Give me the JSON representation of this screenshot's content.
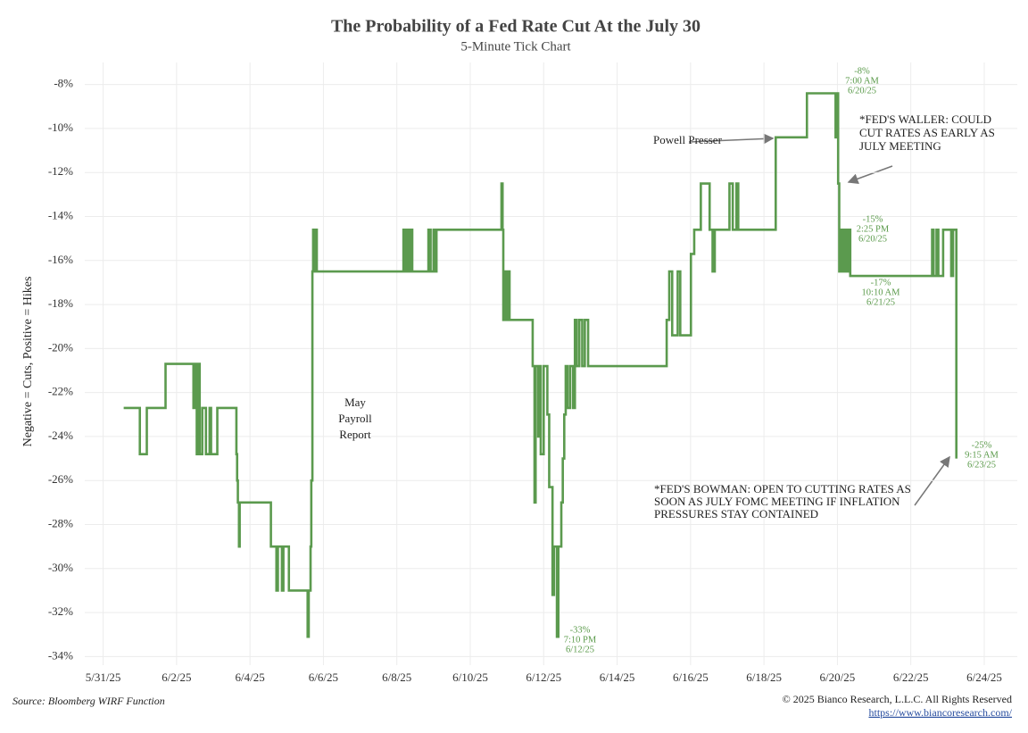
{
  "chart_data": {
    "type": "line",
    "title": "The Probability of a Fed Rate Cut At the July 30",
    "subtitle": "5-Minute Tick Chart",
    "y_label": "Negative = Cuts, Positive = Hikes",
    "source": "Source: Bloomberg WIRF Function",
    "copyright": "© 2025 Bianco Research, L.L.C. All Rights Reserved",
    "url": "https://www.biancoresearch.com/",
    "color": "#5b9a4e",
    "step": "post",
    "grid": true,
    "xlim": [
      -0.5,
      24.9
    ],
    "ylim": [
      -35,
      -7
    ],
    "xticks": [
      {
        "value": 0,
        "label": "5/31/25"
      },
      {
        "value": 2,
        "label": "6/2/25"
      },
      {
        "value": 4,
        "label": "6/4/25"
      },
      {
        "value": 6,
        "label": "6/6/25"
      },
      {
        "value": 8,
        "label": "6/8/25"
      },
      {
        "value": 10,
        "label": "6/10/25"
      },
      {
        "value": 12,
        "label": "6/12/25"
      },
      {
        "value": 14,
        "label": "6/14/25"
      },
      {
        "value": 16,
        "label": "6/16/25"
      },
      {
        "value": 18,
        "label": "6/18/25"
      },
      {
        "value": 20,
        "label": "6/20/25"
      },
      {
        "value": 22,
        "label": "6/22/25"
      },
      {
        "value": 24,
        "label": "6/24/25"
      }
    ],
    "yticks": [
      {
        "value": -34,
        "label": "-34%"
      },
      {
        "value": -32,
        "label": "-32%"
      },
      {
        "value": -30,
        "label": "-30%"
      },
      {
        "value": -28,
        "label": "-28%"
      },
      {
        "value": -26,
        "label": "-26%"
      },
      {
        "value": -24,
        "label": "-24%"
      },
      {
        "value": -22,
        "label": "-22%"
      },
      {
        "value": -20,
        "label": "-20%"
      },
      {
        "value": -18,
        "label": "-18%"
      },
      {
        "value": -16,
        "label": "-16%"
      },
      {
        "value": -14,
        "label": "-14%"
      },
      {
        "value": -12,
        "label": "-12%"
      },
      {
        "value": -10,
        "label": "-10%"
      },
      {
        "value": -8,
        "label": "-8%"
      }
    ],
    "x": [
      0.56,
      1.0,
      1.19,
      1.7,
      2.46,
      2.5,
      2.55,
      2.6,
      2.63,
      2.7,
      2.8,
      2.9,
      2.94,
      3.11,
      3.63,
      3.65,
      3.67,
      3.7,
      3.72,
      4.57,
      4.72,
      4.76,
      4.87,
      4.91,
      5.06,
      5.57,
      5.6,
      5.65,
      5.67,
      5.7,
      5.72,
      5.75,
      5.78,
      5.82,
      8.18,
      8.22,
      8.27,
      8.33,
      8.39,
      8.42,
      8.86,
      8.92,
      9.0,
      9.03,
      9.08,
      10.85,
      10.88,
      10.9,
      10.95,
      11.0,
      11.04,
      11.07,
      11.7,
      11.75,
      11.78,
      11.85,
      11.88,
      11.92,
      12.0,
      12.1,
      12.15,
      12.24,
      12.28,
      12.36,
      12.4,
      12.48,
      12.52,
      12.56,
      12.6,
      12.65,
      12.72,
      12.8,
      12.85,
      12.9,
      12.97,
      13.05,
      13.12,
      13.21,
      15.35,
      15.42,
      15.5,
      15.65,
      15.72,
      16.01,
      16.1,
      16.28,
      16.52,
      16.6,
      16.66,
      17.06,
      17.15,
      17.25,
      17.3,
      18.32,
      19.17,
      19.95,
      19.98,
      20.02,
      20.05,
      20.08,
      20.12,
      20.18,
      20.24,
      20.3,
      20.35,
      22.58,
      22.62,
      22.7,
      22.75,
      22.88,
      23.1,
      23.15,
      23.24
    ],
    "values": [
      -22.7,
      -24.8,
      -22.7,
      -20.7,
      -22.7,
      -20.7,
      -24.8,
      -20.7,
      -24.8,
      -22.7,
      -24.8,
      -22.7,
      -24.8,
      -22.7,
      -24.8,
      -26,
      -27,
      -29,
      -27,
      -29,
      -31,
      -29,
      -31,
      -29,
      -31,
      -33.1,
      -31,
      -29,
      -26,
      -16.5,
      -14.6,
      -16.5,
      -14.6,
      -16.5,
      -14.6,
      -16.5,
      -14.6,
      -16.5,
      -14.6,
      -16.5,
      -14.6,
      -16.5,
      -14.6,
      -16.5,
      -14.6,
      -12.5,
      -14.6,
      -18.7,
      -16.5,
      -18.7,
      -16.5,
      -18.7,
      -20.8,
      -27,
      -20.8,
      -24,
      -20.8,
      -24.8,
      -20.8,
      -23,
      -26.3,
      -31.2,
      -29,
      -33.1,
      -29,
      -27,
      -25,
      -23,
      -20.8,
      -22.7,
      -20.8,
      -22.7,
      -18.7,
      -20.8,
      -18.7,
      -20.8,
      -18.7,
      -20.8,
      -18.7,
      -16.5,
      -19.4,
      -16.5,
      -19.4,
      -15.7,
      -14.6,
      -12.5,
      -14.6,
      -16.5,
      -14.6,
      -12.5,
      -14.6,
      -12.5,
      -14.6,
      -10.4,
      -8.4,
      -10.4,
      -8.4,
      -12.5,
      -16.5,
      -14.6,
      -16.5,
      -14.6,
      -16.5,
      -14.6,
      -16.7,
      -14.6,
      -16.7,
      -14.6,
      -16.7,
      -14.6,
      -16.7,
      -14.6,
      -25
    ],
    "annotations": [
      {
        "lines": [
          "May",
          "Payroll",
          "Report"
        ]
      },
      {
        "lines": [
          "Powell Presser"
        ]
      },
      {
        "lines": [
          "*FED'S WALLER: COULD",
          "CUT RATES AS EARLY AS",
          "JULY MEETING"
        ]
      },
      {
        "lines": [
          "*FED'S BOWMAN: OPEN TO CUTTING RATES AS",
          "SOON AS JULY FOMC MEETING IF INFLATION",
          "PRESSURES STAY CONTAINED"
        ]
      },
      {
        "lines": [
          "-8%",
          "7:00 AM",
          "6/20/25"
        ]
      },
      {
        "lines": [
          "-15%",
          "2:25 PM",
          "6/20/25"
        ]
      },
      {
        "lines": [
          "-17%",
          "10:10 AM",
          "6/21/25"
        ]
      },
      {
        "lines": [
          "-33%",
          "7:10 PM",
          "6/12/25"
        ]
      },
      {
        "lines": [
          "-25%",
          "9:15 AM",
          "6/23/25"
        ]
      }
    ]
  }
}
